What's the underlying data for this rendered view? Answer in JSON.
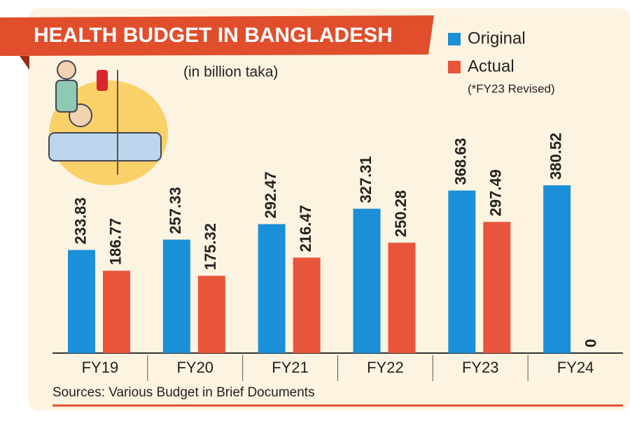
{
  "chart_data": {
    "type": "bar",
    "title": "HEALTH BUDGET IN BANGLADESH",
    "subtitle": "(in billion taka)",
    "note": "(*FY23 Revised)",
    "source": "Sources: Various Budget in Brief Documents",
    "categories": [
      "FY19",
      "FY20",
      "FY21",
      "FY22",
      "FY23",
      "FY24"
    ],
    "series": [
      {
        "name": "Original",
        "color": "#1b8fd8",
        "values": [
          233.83,
          257.33,
          292.47,
          327.31,
          368.63,
          380.52
        ]
      },
      {
        "name": "Actual",
        "color": "#e8553a",
        "values": [
          186.77,
          175.32,
          216.47,
          250.28,
          297.49,
          0
        ]
      }
    ]
  }
}
